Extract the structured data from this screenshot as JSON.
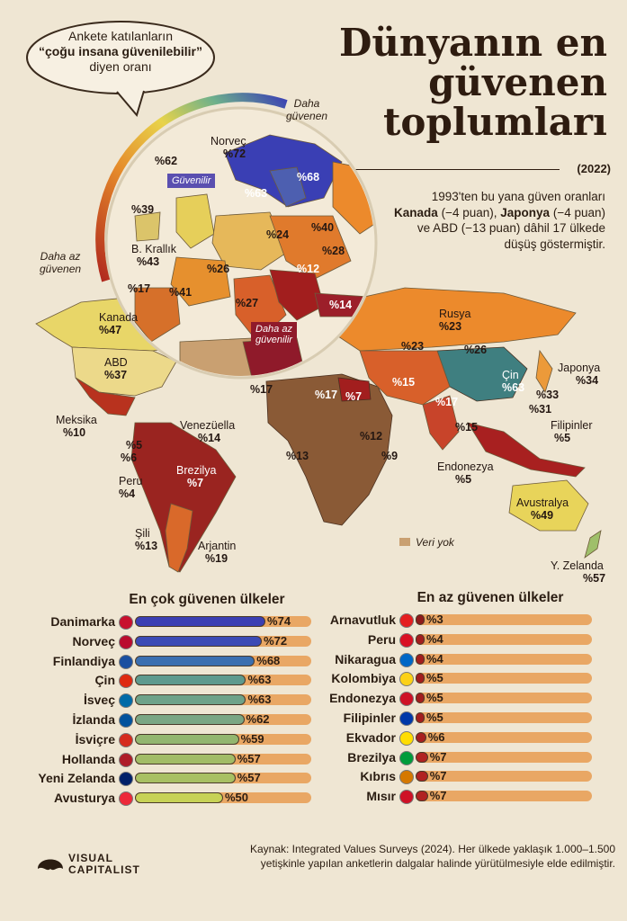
{
  "title": "Dünyanın en güvenen toplumları",
  "year": "(2022)",
  "subtitle_parts": {
    "p1": "1993'ten bu yana güven oranları",
    "canada": "Kanada",
    "canada_delta": "(−4 puan),",
    "japan": "Japonya",
    "japan_delta": "(−4 puan)",
    "p2": "ve ABD",
    "usa_delta": "(−13 puan)",
    "p3": "dâhil 17 ülkede",
    "p4": "düşüş göstermiştir."
  },
  "bubble": {
    "line1": "Ankete katılanların",
    "line2": "“çoğu insana güvenilebilir”",
    "line3": "diyen oranı"
  },
  "scale": {
    "high_line1": "Daha",
    "high_line2": "güvenen",
    "low_line1": "Daha az",
    "low_line2": "güvenen"
  },
  "map_tags": {
    "trusting": "Güvenilir",
    "less_line1": "Daha az",
    "less_line2": "güvenilir"
  },
  "no_data": "Veri yok",
  "map_labels": {
    "norvec_name": "Norveç",
    "norvec_val": "%72",
    "p62": "%62",
    "p63a": "%63",
    "p68": "%68",
    "p39": "%39",
    "p24": "%24",
    "p40": "%40",
    "p28": "%28",
    "ingiltere_name": "B. Krallık",
    "ingiltere_val": "%43",
    "p26": "%26",
    "p12a": "%12",
    "p17a": "%17",
    "p41": "%41",
    "p27": "%27",
    "p14a": "%14",
    "kanada_name": "Kanada",
    "kanada_val": "%47",
    "abd_name": "ABD",
    "abd_val": "%37",
    "rusya_name": "Rusya",
    "rusya_val": "%23",
    "p23": "%23",
    "p26b": "%26",
    "cin_name": "Çin",
    "cin_val": "%63",
    "japonya_name": "Japonya",
    "japonya_val": "%34",
    "p33": "%33",
    "p31": "%31",
    "filipinler_name": "Filipinler",
    "filipinler_val": "%5",
    "p17b": "%17",
    "p17c": "%17",
    "p7a": "%7",
    "p15a": "%15",
    "p17d": "%17",
    "p15b": "%15",
    "meksika_name": "Meksika",
    "meksika_val": "%10",
    "venezuela_name": "Venezüella",
    "venezuela_val": "%14",
    "p5": "%5",
    "p6": "%6",
    "brezilya_name": "Brezilya",
    "brezilya_val": "%7",
    "peru_name": "Peru",
    "peru_val": "%4",
    "sili_name": "Şili",
    "sili_val": "%13",
    "arjantin_name": "Arjantin",
    "arjantin_val": "%19",
    "p13": "%13",
    "p12b": "%12",
    "p9": "%9",
    "endonezya_name": "Endonezya",
    "endonezya_val": "%5",
    "avustralya_name": "Avustralya",
    "avustralya_val": "%49",
    "yzelanda_name": "Y. Zelanda",
    "yzelanda_val": "%57"
  },
  "sections": {
    "most": "En çok güvenen ülkeler",
    "least": "En az güvenen ülkeler"
  },
  "chart_data": [
    {
      "type": "bar",
      "title": "En çok güvenen ülkeler",
      "categories": [
        "Danimarka",
        "Norveç",
        "Finlandiya",
        "Çin",
        "İsveç",
        "İzlanda",
        "İsviçre",
        "Hollanda",
        "Yeni Zelanda",
        "Avusturya"
      ],
      "values": [
        74,
        72,
        68,
        63,
        63,
        62,
        59,
        57,
        57,
        50
      ],
      "labels": [
        "%74",
        "%72",
        "%68",
        "%63",
        "%63",
        "%62",
        "%59",
        "%57",
        "%57",
        "%50"
      ],
      "ylim": [
        0,
        100
      ],
      "colors": [
        "#3b3fb3",
        "#3c4bb5",
        "#3b6fb0",
        "#5e9a8e",
        "#6ea289",
        "#7aa684",
        "#93b66f",
        "#a2bc66",
        "#a8c063",
        "#c7d256"
      ],
      "flags": [
        "#c8102e",
        "#ba0c2f",
        "#1a4fa0",
        "#de2910",
        "#006aa7",
        "#02529c",
        "#d52b1e",
        "#ae1c28",
        "#012169",
        "#ed2939"
      ]
    },
    {
      "type": "bar",
      "title": "En az güvenen ülkeler",
      "categories": [
        "Arnavutluk",
        "Peru",
        "Nikaragua",
        "Kolombiya",
        "Endonezya",
        "Filipinler",
        "Ekvador",
        "Brezilya",
        "Kıbrıs",
        "Mısır"
      ],
      "values": [
        3,
        4,
        4,
        5,
        5,
        5,
        6,
        7,
        7,
        7
      ],
      "labels": [
        "%3",
        "%4",
        "%4",
        "%5",
        "%5",
        "%5",
        "%6",
        "%7",
        "%7",
        "%7"
      ],
      "ylim": [
        0,
        100
      ],
      "colors": [
        "#8e1b1b",
        "#a21e1e",
        "#a21e1e",
        "#a21e1e",
        "#a21e1e",
        "#a21e1e",
        "#a82020",
        "#b02222",
        "#b02222",
        "#b02222"
      ],
      "flags": [
        "#e41e20",
        "#d91023",
        "#0067c6",
        "#fcd116",
        "#ce1126",
        "#0038a8",
        "#ffdd00",
        "#009c3b",
        "#d57800",
        "#ce1126"
      ]
    }
  ],
  "brand": {
    "line1": "VISUAL",
    "line2": "CAPITALIST"
  },
  "source": "Kaynak: Integrated Values Surveys (2024). Her ülkede yaklaşık 1.000–1.500 yetişkinle yapılan anketlerin dalgalar halinde yürütülmesiyle elde edilmiştir.",
  "colors": {
    "background": "#efe6d3",
    "track": "#e9a764",
    "tag_blue": "#5a4fb0",
    "tag_red": "#8f1a2a"
  }
}
